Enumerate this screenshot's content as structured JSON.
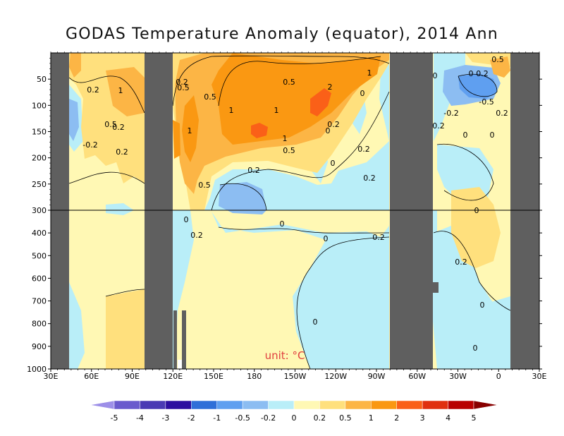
{
  "title": "GODAS Temperature Anomaly (equator), 2014 Ann",
  "chart_data": {
    "type": "heatmap",
    "title": "GODAS Temperature Anomaly (equator), 2014 Ann",
    "xlabel": "",
    "ylabel": "",
    "x_ticks": [
      "30E",
      "60E",
      "90E",
      "120E",
      "150E",
      "180",
      "150W",
      "120W",
      "90W",
      "60W",
      "30W",
      "0",
      "30E"
    ],
    "y_ticks_upper": [
      50,
      100,
      150,
      200,
      250,
      300
    ],
    "y_ticks_lower": [
      400,
      500,
      600,
      700,
      800,
      900,
      1000
    ],
    "ylim": [
      1000,
      0
    ],
    "axis_break_depth": 300,
    "unit_label": "unit: °C",
    "colorbar": {
      "levels": [
        "-5",
        "-4",
        "-3",
        "-2",
        "-1",
        "-0.5",
        "-0.2",
        "0",
        "0.2",
        "0.5",
        "1",
        "2",
        "3",
        "4",
        "5"
      ],
      "colors": [
        "#9d8fe8",
        "#6a5acd",
        "#4a3ab4",
        "#2d0fa0",
        "#2f6fd8",
        "#5f9ff0",
        "#8cbdf2",
        "#b9eef8",
        "#fff8b4",
        "#ffe07d",
        "#fcb545",
        "#fa9812",
        "#fa6018",
        "#e03010",
        "#b80000",
        "#880000"
      ]
    },
    "land_mask_lon_ranges": [
      [
        "30E",
        "40E"
      ],
      [
        "98E",
        "115E"
      ],
      [
        "80W",
        "50W"
      ],
      [
        "10E",
        "30E"
      ]
    ],
    "contour_labels": [
      "-0.5",
      "-0.2",
      "0",
      "0.2",
      "0.5",
      "1",
      "2"
    ],
    "regions": [
      {
        "value_range": [
          1,
          2
        ],
        "lon": "180-120W",
        "depth": "50-200",
        "label": "1"
      },
      {
        "value_range": [
          2,
          3
        ],
        "lon": "140W-130W",
        "depth": "90-130",
        "label": "2"
      },
      {
        "value_range": [
          0.5,
          1
        ],
        "lon": "145E-100W",
        "depth": "20-230",
        "label": "0.5"
      },
      {
        "value_range": [
          -0.5,
          -0.2
        ],
        "lon": "165E-180",
        "depth": "250-300",
        "label": "-0.2"
      },
      {
        "value_range": [
          -1,
          -0.5
        ],
        "lon": "20W-10W",
        "depth": "60-110",
        "label": "-0.5"
      },
      {
        "value_range": [
          0,
          0.2
        ],
        "lon": "120E-60W",
        "depth": "300-1000",
        "label": "0"
      }
    ]
  }
}
